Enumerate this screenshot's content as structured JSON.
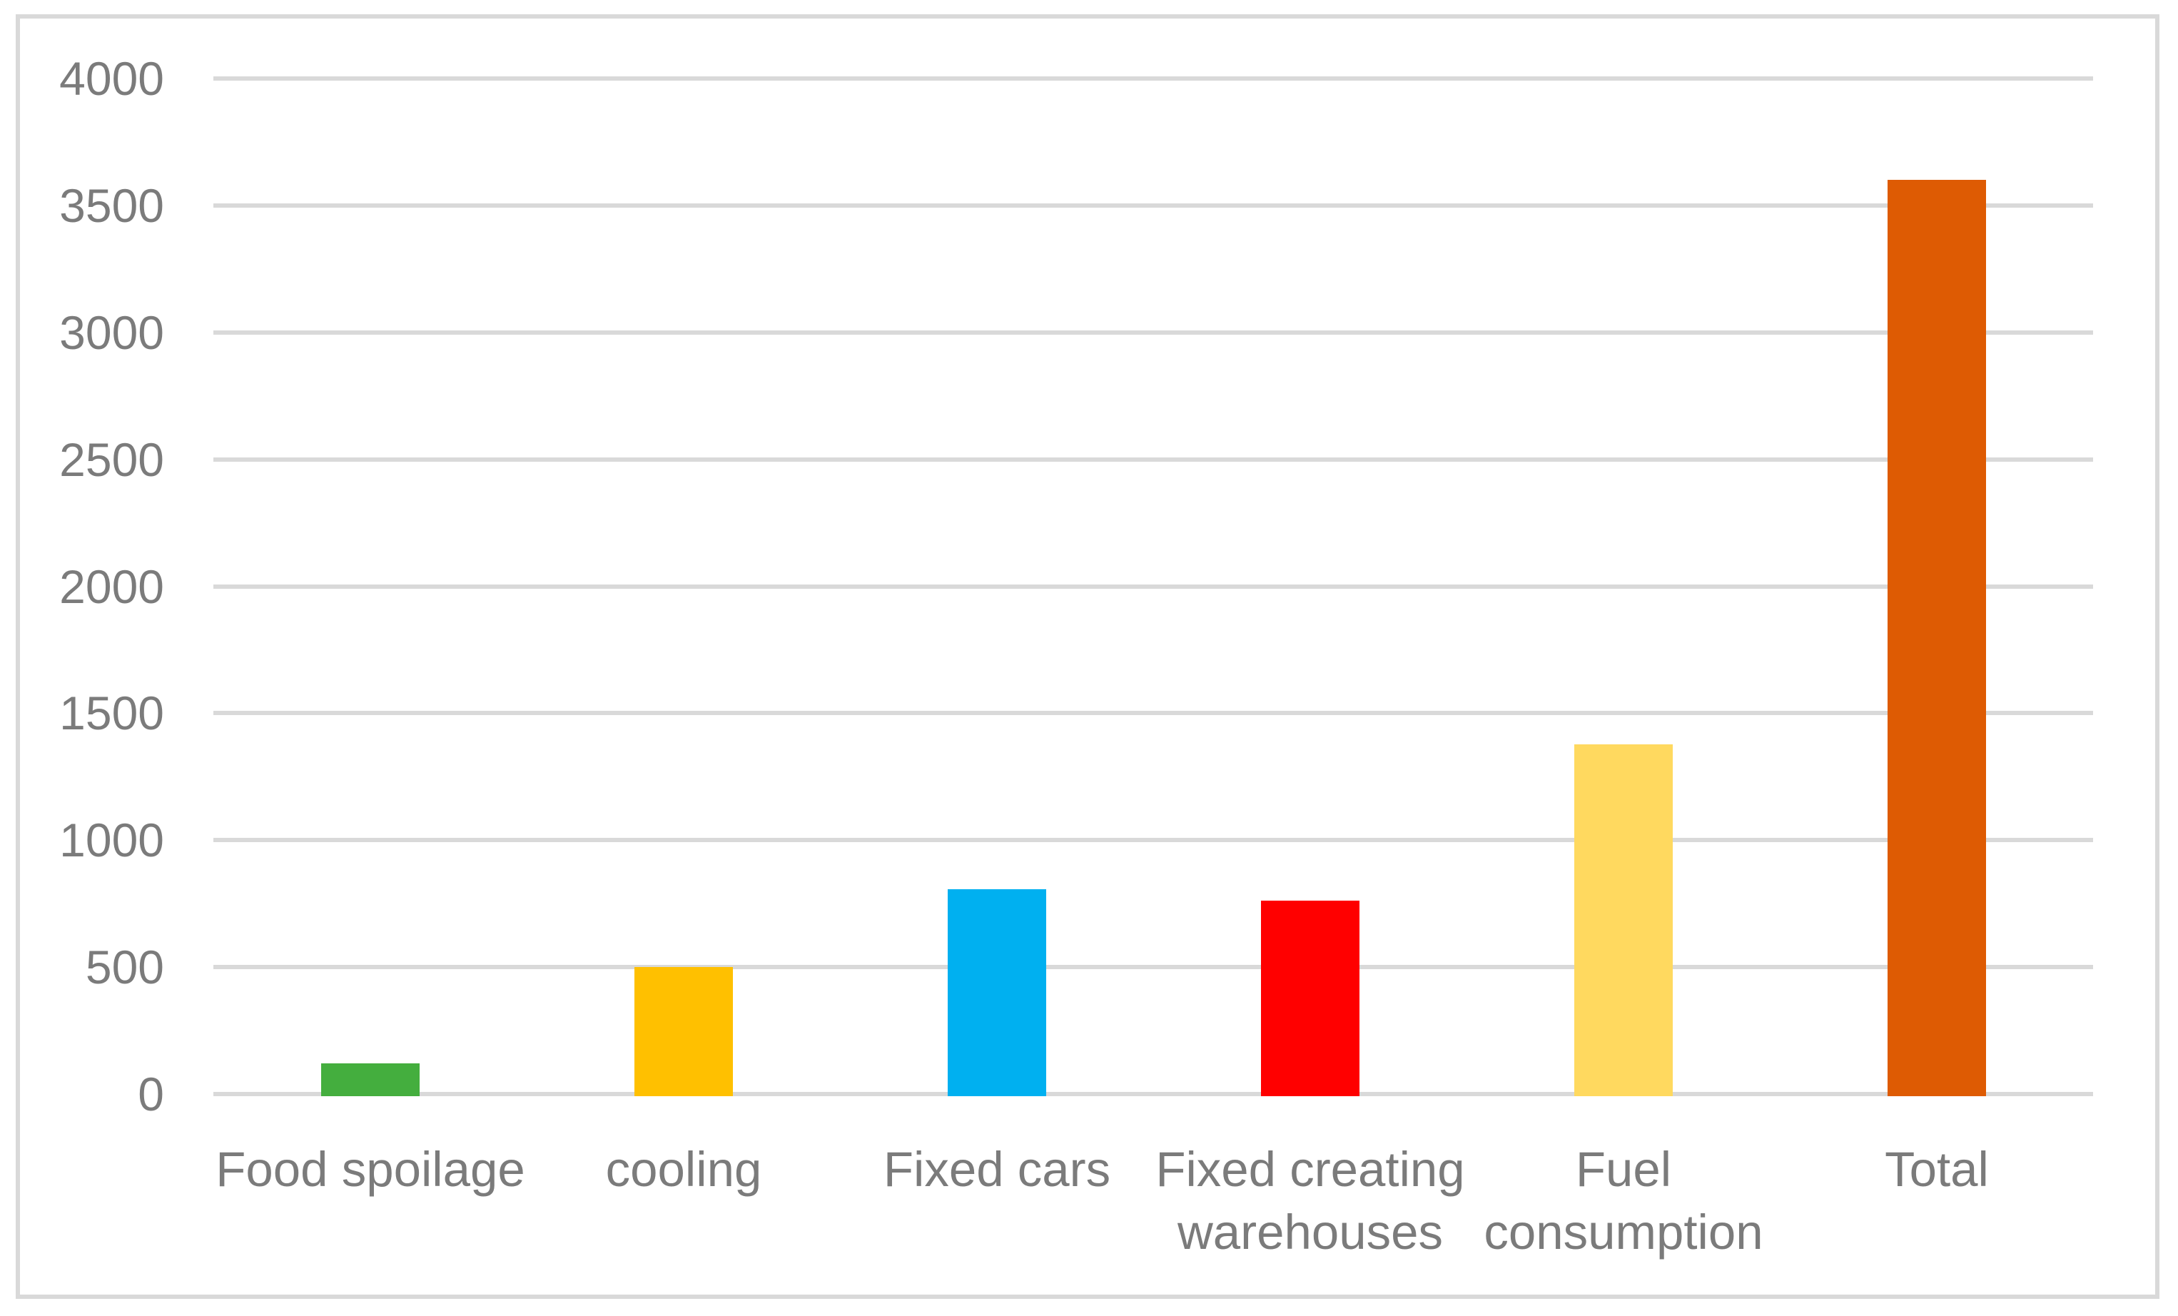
{
  "chart_data": {
    "type": "bar",
    "title": "",
    "xlabel": "",
    "ylabel": "",
    "categories": [
      "Food spoilage",
      "cooling",
      "Fixed cars",
      "Fixed creating warehouses",
      "Fuel consumption",
      "Total"
    ],
    "category_lines": [
      [
        "Food spoilage"
      ],
      [
        "cooling"
      ],
      [
        "Fixed cars"
      ],
      [
        "Fixed creating",
        "warehouses"
      ],
      [
        "Fuel",
        "consumption"
      ],
      [
        "Total"
      ]
    ],
    "values": [
      130,
      510,
      815,
      770,
      1385,
      3610
    ],
    "bar_colors": [
      "#44AE3E",
      "#FFC000",
      "#00B0F0",
      "#FF0000",
      "#FFD95F",
      "#DE5B03"
    ],
    "ylim": [
      0,
      4000
    ],
    "yticks": [
      0,
      500,
      1000,
      1500,
      2000,
      2500,
      3000,
      3500,
      4000
    ],
    "ytick_labels": [
      "0",
      "500",
      "1000",
      "1500",
      "2000",
      "2500",
      "3000",
      "3500",
      "4000"
    ],
    "grid": "horizontal",
    "gridline_color": "#D9D9D9",
    "axis_text_color": "#7B7B7B",
    "plot_border_color": "#D9D9D9",
    "background_color": "#FFFFFF",
    "legend": "none"
  }
}
